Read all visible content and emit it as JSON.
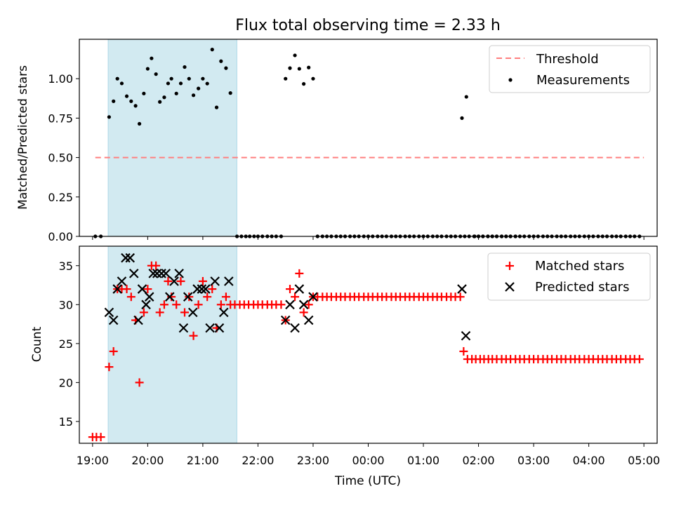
{
  "chart_data": {
    "title": "Flux total observing time = 2.33 h",
    "xlabel": "Time (UTC)",
    "xlim": [
      -0.24,
      10.24
    ],
    "xticks": [
      {
        "v": 0,
        "label": "19:00"
      },
      {
        "v": 1,
        "label": "20:00"
      },
      {
        "v": 2,
        "label": "21:00"
      },
      {
        "v": 3,
        "label": "22:00"
      },
      {
        "v": 4,
        "label": "23:00"
      },
      {
        "v": 5,
        "label": "00:00"
      },
      {
        "v": 6,
        "label": "01:00"
      },
      {
        "v": 7,
        "label": "02:00"
      },
      {
        "v": 8,
        "label": "03:00"
      },
      {
        "v": 9,
        "label": "04:00"
      },
      {
        "v": 10,
        "label": "05:00"
      }
    ],
    "shaded_region": {
      "from": 0.283,
      "to": 2.617,
      "color": "#add8e6"
    },
    "top_panel": {
      "type": "scatter",
      "ylabel": "Matched/Predicted stars",
      "ylim": [
        0,
        1.25
      ],
      "yticks": [
        {
          "v": 0,
          "label": "0.00"
        },
        {
          "v": 0.25,
          "label": "0.25"
        },
        {
          "v": 0.5,
          "label": "0.50"
        },
        {
          "v": 0.75,
          "label": "0.75"
        },
        {
          "v": 1,
          "label": "1.00"
        }
      ],
      "threshold": {
        "name": "Threshold",
        "value": 0.5,
        "x_range": [
          0.05,
          10.0
        ],
        "color": "#ff7f7f"
      },
      "measurements_name": "Measurements",
      "legend_position": "upper-right",
      "measurements": [
        [
          0.05,
          0
        ],
        [
          0.15,
          0
        ],
        [
          0.3,
          0.757
        ],
        [
          0.38,
          0.857
        ],
        [
          0.45,
          1.0
        ],
        [
          0.53,
          0.97
        ],
        [
          0.62,
          0.889
        ],
        [
          0.7,
          0.857
        ],
        [
          0.78,
          0.828
        ],
        [
          0.85,
          0.714
        ],
        [
          0.93,
          0.906
        ],
        [
          1.0,
          1.063
        ],
        [
          1.07,
          1.129
        ],
        [
          1.15,
          1.029
        ],
        [
          1.22,
          0.853
        ],
        [
          1.3,
          0.882
        ],
        [
          1.37,
          0.97
        ],
        [
          1.43,
          1.0
        ],
        [
          1.52,
          0.906
        ],
        [
          1.6,
          0.97
        ],
        [
          1.67,
          1.074
        ],
        [
          1.75,
          1.0
        ],
        [
          1.83,
          0.895
        ],
        [
          1.92,
          0.938
        ],
        [
          2.0,
          1.0
        ],
        [
          2.08,
          0.969
        ],
        [
          2.17,
          1.185
        ],
        [
          2.25,
          0.818
        ],
        [
          2.33,
          1.111
        ],
        [
          2.42,
          1.067
        ],
        [
          2.5,
          0.909
        ],
        [
          2.62,
          0
        ],
        [
          2.7,
          0
        ],
        [
          2.78,
          0
        ],
        [
          2.85,
          0
        ],
        [
          2.93,
          0
        ],
        [
          3.0,
          0
        ],
        [
          3.08,
          0
        ],
        [
          3.17,
          0
        ],
        [
          3.25,
          0
        ],
        [
          3.33,
          0
        ],
        [
          3.42,
          0
        ],
        [
          3.5,
          1.0
        ],
        [
          3.58,
          1.067
        ],
        [
          3.67,
          1.148
        ],
        [
          3.75,
          1.063
        ],
        [
          3.83,
          0.967
        ],
        [
          3.92,
          1.071
        ],
        [
          4.0,
          1.0
        ],
        [
          4.08,
          0
        ],
        [
          4.17,
          0
        ],
        [
          4.25,
          0
        ],
        [
          4.33,
          0
        ],
        [
          4.42,
          0
        ],
        [
          4.5,
          0
        ],
        [
          4.58,
          0
        ],
        [
          4.67,
          0
        ],
        [
          4.75,
          0
        ],
        [
          4.83,
          0
        ],
        [
          4.92,
          0
        ],
        [
          5.0,
          0
        ],
        [
          5.08,
          0
        ],
        [
          5.17,
          0
        ],
        [
          5.25,
          0
        ],
        [
          5.33,
          0
        ],
        [
          5.42,
          0
        ],
        [
          5.5,
          0
        ],
        [
          5.58,
          0
        ],
        [
          5.67,
          0
        ],
        [
          5.75,
          0
        ],
        [
          5.83,
          0
        ],
        [
          5.92,
          0
        ],
        [
          6.0,
          0
        ],
        [
          6.08,
          0
        ],
        [
          6.17,
          0
        ],
        [
          6.25,
          0
        ],
        [
          6.33,
          0
        ],
        [
          6.42,
          0
        ],
        [
          6.5,
          0
        ],
        [
          6.58,
          0
        ],
        [
          6.67,
          0
        ],
        [
          6.75,
          0
        ],
        [
          6.83,
          0
        ],
        [
          6.92,
          0
        ],
        [
          7.0,
          0
        ],
        [
          7.08,
          0
        ],
        [
          7.17,
          0
        ],
        [
          7.25,
          0
        ],
        [
          7.33,
          0
        ],
        [
          7.42,
          0
        ],
        [
          7.5,
          0
        ],
        [
          7.58,
          0
        ],
        [
          7.67,
          0
        ],
        [
          6.7,
          0.75
        ],
        [
          6.78,
          0.885
        ],
        [
          6.93,
          0
        ],
        [
          7.0,
          0
        ],
        [
          7.08,
          0
        ],
        [
          7.17,
          0
        ],
        [
          7.25,
          0
        ],
        [
          7.33,
          0
        ],
        [
          7.42,
          0
        ],
        [
          7.5,
          0
        ],
        [
          7.58,
          0
        ],
        [
          7.67,
          0
        ],
        [
          7.75,
          0
        ],
        [
          7.83,
          0
        ],
        [
          7.92,
          0
        ],
        [
          8.0,
          0
        ],
        [
          8.08,
          0
        ],
        [
          8.17,
          0
        ],
        [
          8.25,
          0
        ],
        [
          8.33,
          0
        ],
        [
          8.42,
          0
        ],
        [
          8.5,
          0
        ],
        [
          8.58,
          0
        ],
        [
          8.67,
          0
        ],
        [
          8.75,
          0
        ],
        [
          8.83,
          0
        ],
        [
          8.92,
          0
        ],
        [
          9.0,
          0
        ],
        [
          9.08,
          0
        ],
        [
          9.17,
          0
        ],
        [
          9.25,
          0
        ],
        [
          9.33,
          0
        ],
        [
          9.42,
          0
        ],
        [
          9.5,
          0
        ],
        [
          9.58,
          0
        ],
        [
          9.67,
          0
        ],
        [
          9.75,
          0
        ],
        [
          9.83,
          0
        ],
        [
          9.92,
          0
        ]
      ]
    },
    "bottom_panel": {
      "type": "scatter",
      "ylabel": "Count",
      "ylim": [
        12.2,
        37.5
      ],
      "yticks": [
        {
          "v": 15,
          "label": "15"
        },
        {
          "v": 20,
          "label": "20"
        },
        {
          "v": 25,
          "label": "25"
        },
        {
          "v": 30,
          "label": "30"
        },
        {
          "v": 35,
          "label": "35"
        }
      ],
      "legend_position": "upper-right",
      "series": [
        {
          "name": "Matched stars",
          "marker": "plus",
          "color": "#ff0000",
          "points": [
            [
              0.0,
              13
            ],
            [
              0.07,
              13
            ],
            [
              0.15,
              13
            ],
            [
              0.3,
              22
            ],
            [
              0.38,
              24
            ],
            [
              0.45,
              32
            ],
            [
              0.53,
              32
            ],
            [
              0.62,
              32
            ],
            [
              0.7,
              31
            ],
            [
              0.78,
              28
            ],
            [
              0.85,
              20
            ],
            [
              0.93,
              29
            ],
            [
              1.0,
              32
            ],
            [
              1.07,
              35
            ],
            [
              1.15,
              35
            ],
            [
              1.22,
              29
            ],
            [
              1.3,
              30
            ],
            [
              1.37,
              33
            ],
            [
              1.43,
              31
            ],
            [
              1.52,
              30
            ],
            [
              1.6,
              33
            ],
            [
              1.67,
              29
            ],
            [
              1.75,
              31
            ],
            [
              1.83,
              26
            ],
            [
              1.92,
              30
            ],
            [
              2.0,
              33
            ],
            [
              2.08,
              31
            ],
            [
              2.17,
              32
            ],
            [
              2.25,
              27
            ],
            [
              2.33,
              30
            ],
            [
              2.42,
              31
            ],
            [
              2.5,
              30
            ],
            [
              2.58,
              30
            ],
            [
              2.67,
              30
            ],
            [
              2.75,
              30
            ],
            [
              2.83,
              30
            ],
            [
              2.92,
              30
            ],
            [
              3.0,
              30
            ],
            [
              3.08,
              30
            ],
            [
              3.17,
              30
            ],
            [
              3.25,
              30
            ],
            [
              3.33,
              30
            ],
            [
              3.42,
              30
            ],
            [
              3.5,
              28
            ],
            [
              3.58,
              32
            ],
            [
              3.67,
              31
            ],
            [
              3.75,
              34
            ],
            [
              3.83,
              29
            ],
            [
              3.92,
              30
            ],
            [
              4.0,
              31
            ],
            [
              4.08,
              31
            ],
            [
              4.17,
              31
            ],
            [
              4.25,
              31
            ],
            [
              4.33,
              31
            ],
            [
              4.42,
              31
            ],
            [
              4.5,
              31
            ],
            [
              4.58,
              31
            ],
            [
              4.67,
              31
            ],
            [
              4.75,
              31
            ],
            [
              4.83,
              31
            ],
            [
              4.92,
              31
            ],
            [
              5.0,
              31
            ],
            [
              5.08,
              31
            ],
            [
              5.17,
              31
            ],
            [
              5.25,
              31
            ],
            [
              5.33,
              31
            ],
            [
              5.42,
              31
            ],
            [
              5.5,
              31
            ],
            [
              5.58,
              31
            ],
            [
              5.67,
              31
            ],
            [
              5.75,
              31
            ],
            [
              5.83,
              31
            ],
            [
              5.92,
              31
            ],
            [
              6.0,
              31
            ],
            [
              6.08,
              31
            ],
            [
              6.17,
              31
            ],
            [
              6.25,
              31
            ],
            [
              6.33,
              31
            ],
            [
              6.42,
              31
            ],
            [
              6.5,
              31
            ],
            [
              6.58,
              31
            ],
            [
              6.67,
              31
            ],
            [
              6.73,
              24
            ],
            [
              6.8,
              23
            ],
            [
              6.88,
              23
            ],
            [
              6.95,
              23
            ],
            [
              7.03,
              23
            ],
            [
              7.1,
              23
            ],
            [
              7.18,
              23
            ],
            [
              7.25,
              23
            ],
            [
              7.33,
              23
            ],
            [
              7.42,
              23
            ],
            [
              7.5,
              23
            ],
            [
              7.58,
              23
            ],
            [
              7.67,
              23
            ],
            [
              7.75,
              23
            ],
            [
              7.83,
              23
            ],
            [
              7.92,
              23
            ],
            [
              8.0,
              23
            ],
            [
              8.08,
              23
            ],
            [
              8.17,
              23
            ],
            [
              8.25,
              23
            ],
            [
              8.33,
              23
            ],
            [
              8.42,
              23
            ],
            [
              8.5,
              23
            ],
            [
              8.58,
              23
            ],
            [
              8.67,
              23
            ],
            [
              8.75,
              23
            ],
            [
              8.83,
              23
            ],
            [
              8.92,
              23
            ],
            [
              9.0,
              23
            ],
            [
              9.08,
              23
            ],
            [
              9.17,
              23
            ],
            [
              9.25,
              23
            ],
            [
              9.33,
              23
            ],
            [
              9.42,
              23
            ],
            [
              9.5,
              23
            ],
            [
              9.58,
              23
            ],
            [
              9.67,
              23
            ],
            [
              9.75,
              23
            ],
            [
              9.83,
              23
            ],
            [
              9.92,
              23
            ]
          ]
        },
        {
          "name": "Predicted stars",
          "marker": "x",
          "color": "#000000",
          "points": [
            [
              0.3,
              29
            ],
            [
              0.38,
              28
            ],
            [
              0.45,
              32
            ],
            [
              0.53,
              33
            ],
            [
              0.6,
              36
            ],
            [
              0.68,
              36
            ],
            [
              0.75,
              34
            ],
            [
              0.83,
              28
            ],
            [
              0.9,
              32
            ],
            [
              0.97,
              30
            ],
            [
              1.03,
              31
            ],
            [
              1.1,
              34
            ],
            [
              1.17,
              34
            ],
            [
              1.25,
              34
            ],
            [
              1.33,
              34
            ],
            [
              1.4,
              31
            ],
            [
              1.48,
              33
            ],
            [
              1.57,
              34
            ],
            [
              1.65,
              27
            ],
            [
              1.73,
              31
            ],
            [
              1.82,
              29
            ],
            [
              1.9,
              32
            ],
            [
              1.98,
              32
            ],
            [
              2.05,
              32
            ],
            [
              2.13,
              27
            ],
            [
              2.22,
              33
            ],
            [
              2.3,
              27
            ],
            [
              2.38,
              29
            ],
            [
              2.47,
              33
            ],
            [
              3.5,
              28
            ],
            [
              3.58,
              30
            ],
            [
              3.67,
              27
            ],
            [
              3.75,
              32
            ],
            [
              3.83,
              30
            ],
            [
              3.92,
              28
            ],
            [
              4.0,
              31
            ],
            [
              6.7,
              32
            ],
            [
              6.77,
              26
            ]
          ]
        }
      ]
    }
  }
}
